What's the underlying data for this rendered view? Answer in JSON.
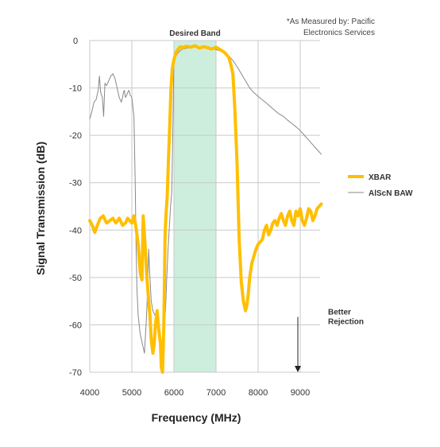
{
  "chart_data": {
    "type": "line",
    "xlabel": "Frequency (MHz)",
    "ylabel": "Signal Transmission (dB)",
    "xlim": [
      4000,
      9600
    ],
    "ylim": [
      -70,
      0
    ],
    "x_ticks": [
      4000,
      5000,
      6000,
      7000,
      8000,
      9000
    ],
    "x_tick_labels": [
      "4000",
      "5000",
      "6000",
      "7000",
      "8000",
      "9000"
    ],
    "y_ticks": [
      0,
      -10,
      -20,
      -30,
      -40,
      -50,
      -60,
      -70
    ],
    "y_tick_labels": [
      "0",
      "-10",
      "-20",
      "-30",
      "-40",
      "-50",
      "-60",
      "-70"
    ],
    "grid": true,
    "legend_position": "right",
    "note_lines": [
      "*As Measured by: Pacific",
      "Electronics Services"
    ],
    "desired_band": {
      "label": "Desired Band",
      "x_start": 6000,
      "x_end": 7000,
      "color": "#cdeedd"
    },
    "annotation": {
      "lines": [
        "Better",
        "Rejection"
      ],
      "x": 9000,
      "y_from": -58,
      "y_to": -70
    },
    "series": [
      {
        "name": "XBAR",
        "color": "#ffbf00",
        "x": [
          4000,
          4060,
          4120,
          4180,
          4250,
          4320,
          4400,
          4480,
          4550,
          4620,
          4700,
          4780,
          4850,
          4900,
          4950,
          5000,
          5050,
          5100,
          5150,
          5200,
          5240,
          5270,
          5300,
          5320,
          5350,
          5400,
          5430,
          5460,
          5500,
          5530,
          5560,
          5600,
          5640,
          5680,
          5700,
          5730,
          5760,
          5790,
          5810,
          5840,
          5870,
          5900,
          5930,
          5960,
          6000,
          6050,
          6100,
          6150,
          6200,
          6300,
          6400,
          6500,
          6600,
          6700,
          6800,
          6900,
          7000,
          7100,
          7200,
          7300,
          7350,
          7400,
          7420,
          7450,
          7500,
          7550,
          7600,
          7650,
          7700,
          7730,
          7760,
          7800,
          7850,
          7900,
          7950,
          8000,
          8050,
          8100,
          8150,
          8200,
          8250,
          8300,
          8350,
          8400,
          8450,
          8500,
          8550,
          8600,
          8650,
          8700,
          8750,
          8800,
          8850,
          8900,
          8950,
          9000,
          9050,
          9100,
          9150,
          9200,
          9250,
          9300,
          9350,
          9400,
          9450,
          9500
        ],
        "y": [
          -38,
          -39,
          -40.5,
          -39,
          -37.5,
          -37,
          -38.5,
          -38,
          -37.5,
          -38.5,
          -37.5,
          -39,
          -38.5,
          -37.5,
          -38,
          -38.5,
          -37,
          -39.5,
          -43,
          -49,
          -50.5,
          -37,
          -41,
          -44,
          -49,
          -55,
          -58,
          -63,
          -66,
          -64,
          -60,
          -57,
          -61,
          -64,
          -69,
          -70,
          -60,
          -41,
          -37,
          -33,
          -25,
          -18,
          -10,
          -6,
          -4,
          -2.5,
          -1.8,
          -1.3,
          -1.5,
          -1.2,
          -1.4,
          -1.1,
          -1.6,
          -1.3,
          -1.5,
          -1.8,
          -1.4,
          -1.9,
          -2.5,
          -3.5,
          -5,
          -7,
          -10,
          -15,
          -26,
          -42,
          -51,
          -55,
          -57,
          -56,
          -54,
          -50,
          -47,
          -45.5,
          -44,
          -43,
          -42.5,
          -42,
          -40,
          -39,
          -41,
          -40,
          -38.5,
          -38,
          -39,
          -37.5,
          -36.5,
          -38,
          -39,
          -37,
          -36,
          -38,
          -39,
          -36,
          -37,
          -35.5,
          -38,
          -39,
          -37.5,
          -35.5,
          -36,
          -38,
          -37,
          -35.5,
          -35,
          -34.5
        ]
      },
      {
        "name": "AlScN BAW",
        "color": "#888888",
        "x": [
          4000,
          4050,
          4100,
          4150,
          4200,
          4230,
          4260,
          4300,
          4330,
          4360,
          4400,
          4450,
          4500,
          4550,
          4600,
          4650,
          4700,
          4750,
          4780,
          4800,
          4820,
          4850,
          4880,
          4900,
          4930,
          4960,
          5000,
          5050,
          5080,
          5100,
          5120,
          5150,
          5200,
          5250,
          5300,
          5350,
          5380,
          5400,
          5430,
          5460,
          5500,
          5550,
          5600,
          5650,
          5700,
          5750,
          5800,
          5830,
          5860,
          5880,
          5900,
          5920,
          5950,
          6000,
          6100,
          6200,
          6300,
          6400,
          6500,
          6600,
          6700,
          6800,
          6900,
          7000,
          7100,
          7200,
          7300,
          7400,
          7500,
          7600,
          7700,
          7800,
          7900,
          8000,
          8100,
          8200,
          8300,
          8400,
          8500,
          8600,
          8700,
          8800,
          8900,
          9000,
          9100,
          9200,
          9300,
          9400,
          9500
        ],
        "y": [
          -16.5,
          -15,
          -13,
          -12.5,
          -10.5,
          -7.5,
          -11,
          -12,
          -16,
          -9,
          -9.5,
          -8.5,
          -7.5,
          -7,
          -8,
          -10,
          -12,
          -13,
          -12,
          -11,
          -10.5,
          -12,
          -11.5,
          -11,
          -10.5,
          -11.5,
          -12,
          -16,
          -30,
          -43,
          -52,
          -58,
          -62,
          -64,
          -66,
          -58,
          -51,
          -44,
          -50,
          -55,
          -57,
          -58,
          -60,
          -62,
          -65,
          -62,
          -57,
          -50,
          -44,
          -41,
          -38,
          -35,
          -32,
          -4,
          -2.5,
          -1.8,
          -1.6,
          -1.5,
          -1.4,
          -1.4,
          -1.5,
          -1.6,
          -1.7,
          -1.9,
          -2.2,
          -2.6,
          -3.2,
          -4.2,
          -5.5,
          -7,
          -8.5,
          -10,
          -11,
          -11.8,
          -12.5,
          -13.2,
          -14,
          -14.8,
          -15.5,
          -16,
          -16.8,
          -17.5,
          -18.2,
          -19,
          -20,
          -21,
          -22,
          -23,
          -24
        ]
      }
    ]
  }
}
